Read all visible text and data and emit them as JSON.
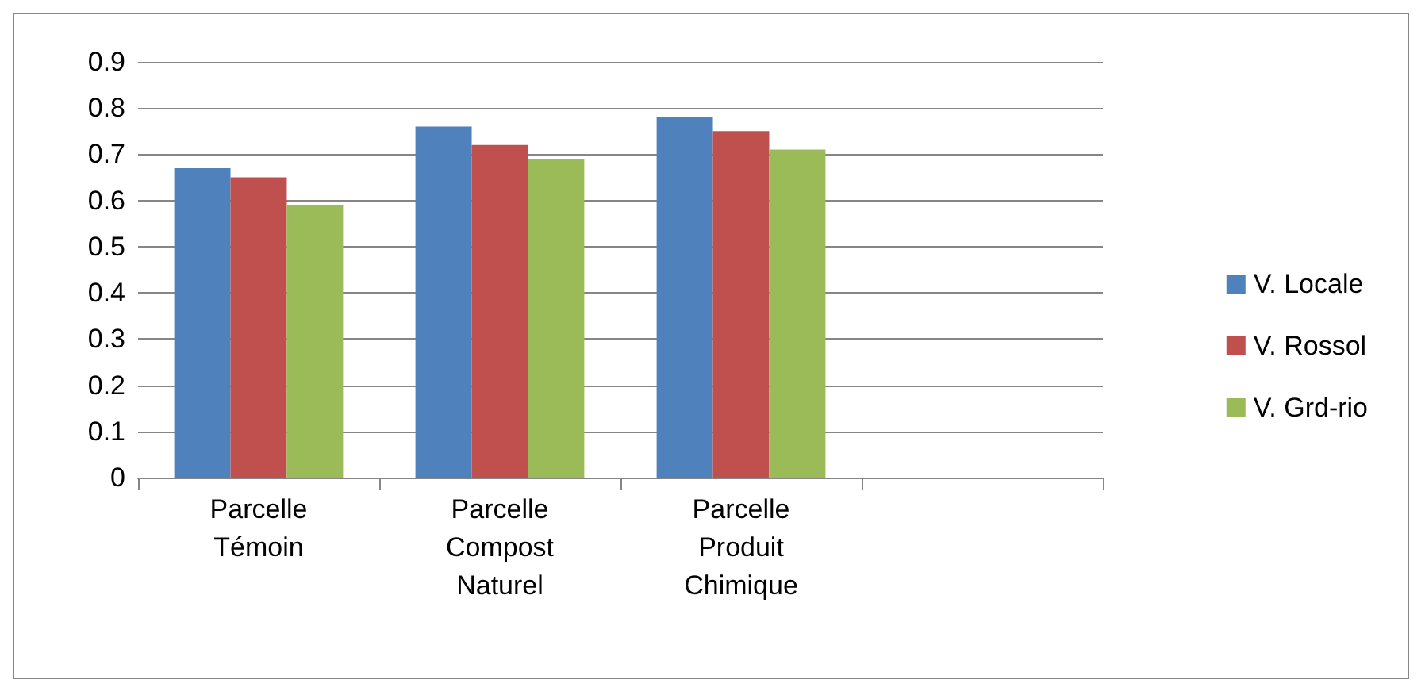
{
  "chart_data": {
    "type": "bar",
    "categories": [
      "Parcelle Témoin",
      "Parcelle Compost Naturel",
      "Parcelle Produit Chimique",
      null
    ],
    "series": [
      {
        "name": "V. Locale",
        "color": "#4f81bd",
        "values": [
          0.67,
          0.76,
          0.78,
          null
        ]
      },
      {
        "name": "V. Rossol",
        "color": "#c0504d",
        "values": [
          0.65,
          0.72,
          0.75,
          null
        ]
      },
      {
        "name": "V. Grd-rio",
        "color": "#9bbb59",
        "values": [
          0.59,
          0.69,
          0.71,
          null
        ]
      }
    ],
    "ylim": [
      0,
      0.9
    ],
    "yticks": [
      0,
      0.1,
      0.2,
      0.3,
      0.4,
      0.5,
      0.6,
      0.7,
      0.8,
      0.9
    ],
    "grid": "y",
    "legend": "right"
  }
}
